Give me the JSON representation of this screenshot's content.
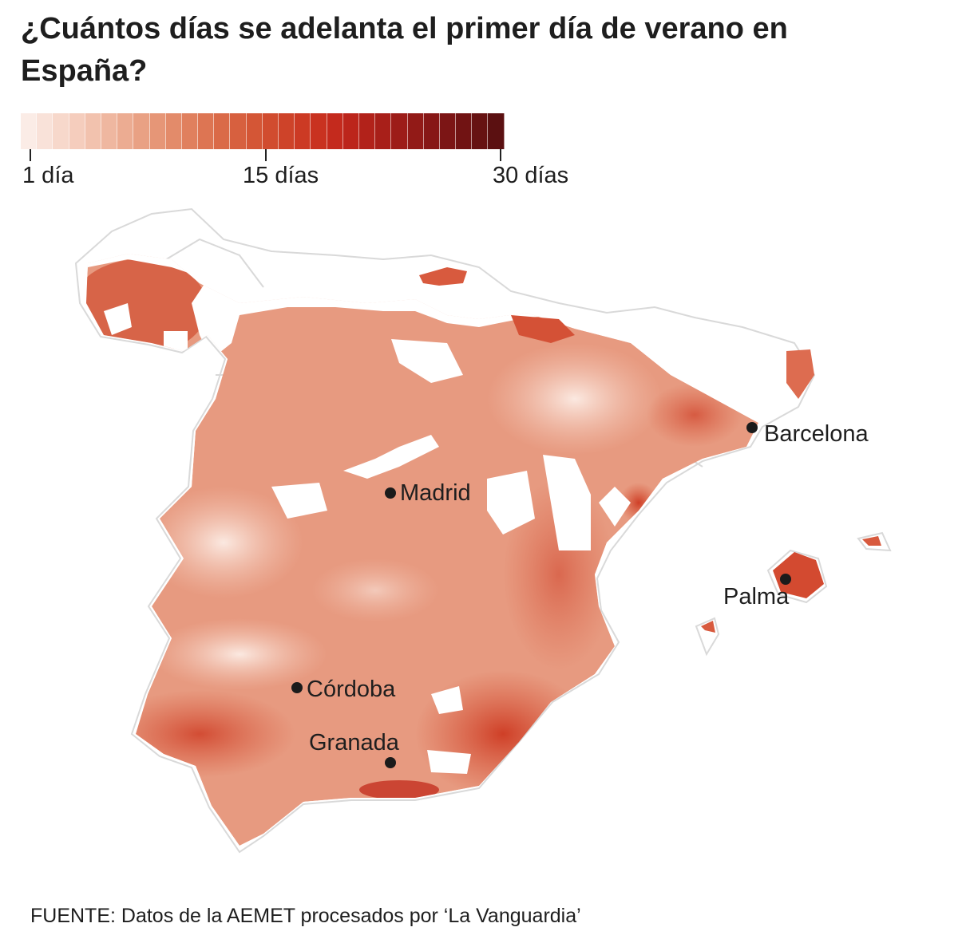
{
  "title": "¿Cuántos días se adelanta el primer día de verano en España?",
  "legend": {
    "min_label": "1 día",
    "mid_label": "15 días",
    "max_label": "30 días",
    "min_value": 1,
    "mid_value": 15,
    "max_value": 30,
    "steps": 30,
    "colors": [
      "#fbece6",
      "#f9e2d9",
      "#f7d8cb",
      "#f5cdbd",
      "#f2c2ae",
      "#efb7a0",
      "#ecac92",
      "#e9a184",
      "#e69677",
      "#e38b6a",
      "#e0805e",
      "#dd7553",
      "#da6a48",
      "#d7603f",
      "#d45636",
      "#d14c2f",
      "#ce4329",
      "#cc3a24",
      "#c93220",
      "#c42a1d",
      "#bc251b",
      "#b2221a",
      "#a81f19",
      "#9d1c18",
      "#921a17",
      "#871716",
      "#7c1515",
      "#711313",
      "#661212",
      "#5b1011"
    ]
  },
  "map": {
    "cities": [
      {
        "name": "Madrid",
        "label": "Madrid"
      },
      {
        "name": "Barcelona",
        "label": "Barcelona"
      },
      {
        "name": "Palma",
        "label": "Palma"
      },
      {
        "name": "Córdoba",
        "label": "Córdoba"
      },
      {
        "name": "Granada",
        "label": "Granada"
      }
    ],
    "fill_colors": {
      "light": "#f6d5c8",
      "medium": "#e9957a",
      "dark": "#d75639",
      "darkest": "#c4301f",
      "border": "#d9d9d9"
    }
  },
  "source": "FUENTE: Datos de la AEMET procesados por ‘La Vanguardia’"
}
